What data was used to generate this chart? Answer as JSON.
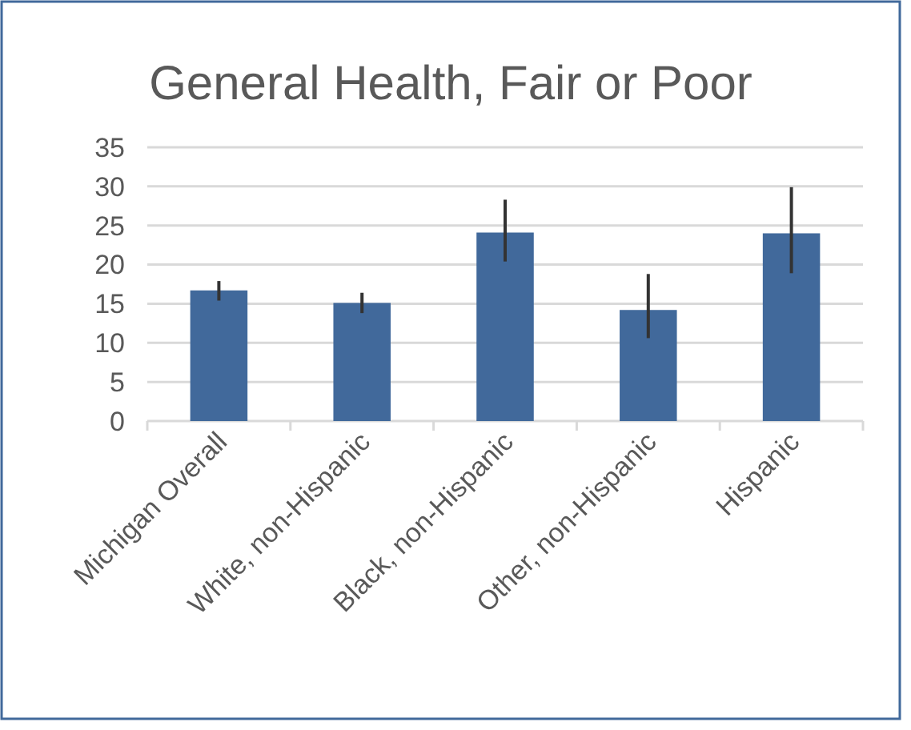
{
  "chart_data": {
    "type": "bar",
    "title": "General Health, Fair or Poor",
    "categories": [
      "Michigan Overall",
      "White, non-Hispanic",
      "Black, non-Hispanic",
      "Other, non-Hispanic",
      "Hispanic"
    ],
    "values": [
      16.7,
      15.1,
      24.1,
      14.2,
      24.0
    ],
    "errors": [
      [
        15.4,
        17.9
      ],
      [
        13.8,
        16.4
      ],
      [
        20.4,
        28.3
      ],
      [
        10.6,
        18.8
      ],
      [
        18.9,
        29.9
      ]
    ],
    "color": "#41699b",
    "ylim": [
      0,
      35
    ],
    "yticks": [
      0,
      5,
      10,
      15,
      20,
      25,
      30,
      35
    ],
    "grid": "y"
  }
}
